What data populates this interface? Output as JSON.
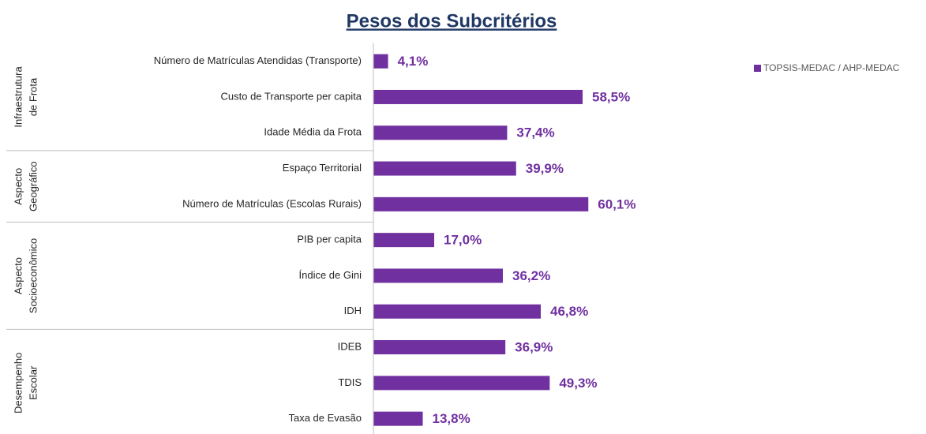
{
  "chart_data": {
    "type": "bar",
    "orientation": "horizontal",
    "title": "Pesos dos Subcritérios",
    "legend": "TOPSIS-MEDAC / AHP-MEDAC",
    "color": "#7030a0",
    "xlim": [
      0,
      100
    ],
    "groups": [
      {
        "name": [
          "Infraestrutura",
          "de Frota"
        ],
        "categories": [
          "Número de Matrículas Atendidas (Transporte)",
          "Custo de Transporte per capita",
          "Idade Média da Frota"
        ],
        "values": [
          4.1,
          58.5,
          37.4
        ],
        "value_labels": [
          "4,1%",
          "58,5%",
          "37,4%"
        ]
      },
      {
        "name": [
          "Aspecto",
          "Geográfico"
        ],
        "categories": [
          "Espaço Territorial",
          "Número de Matrículas (Escolas Rurais)"
        ],
        "values": [
          39.9,
          60.1
        ],
        "value_labels": [
          "39,9%",
          "60,1%"
        ]
      },
      {
        "name": [
          "Aspecto",
          "Socioeconômico"
        ],
        "categories": [
          "PIB  per capita",
          "Índice de Gini",
          "IDH"
        ],
        "values": [
          17.0,
          36.2,
          46.8
        ],
        "value_labels": [
          "17,0%",
          "36,2%",
          "46,8%"
        ]
      },
      {
        "name": [
          "Desempenho",
          "Escolar"
        ],
        "categories": [
          "IDEB",
          "TDIS",
          "Taxa de Evasão"
        ],
        "values": [
          36.9,
          49.3,
          13.8
        ],
        "value_labels": [
          "36,9%",
          "49,3%",
          "13,8%"
        ]
      }
    ]
  }
}
